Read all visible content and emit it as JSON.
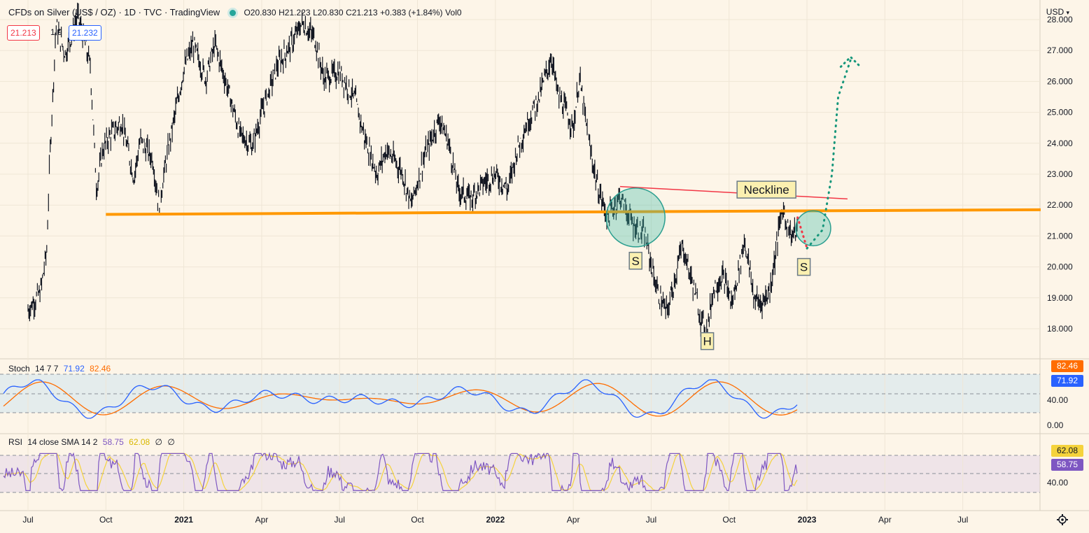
{
  "header": {
    "symbol": "CFDs on Silver (US$ / OZ) · 1D · TVC · TradingView",
    "open": "O20.830",
    "high": "H21.223",
    "low": "L20.830",
    "close": "C21.213",
    "change": "+0.383 (+1.84%)",
    "volume": "Vol0",
    "sell_price": "21.213",
    "spread": "1.9",
    "buy_price": "21.232",
    "currency": "USD"
  },
  "chart_data": {
    "type": "line",
    "title": "CFDs on Silver (US$ / OZ) · 1D · TVC · TradingView",
    "y_ticks": [
      "28.000",
      "27.000",
      "26.000",
      "25.000",
      "24.000",
      "23.000",
      "22.000",
      "21.000",
      "20.000",
      "19.000",
      "18.000"
    ],
    "x_ticks": [
      "Jul",
      "Oct",
      "2021",
      "Apr",
      "Jul",
      "Oct",
      "2022",
      "Apr",
      "Jul",
      "Oct",
      "2023",
      "Apr",
      "Jul"
    ],
    "ylim": [
      17.2,
      28.2
    ],
    "price_path": [
      [
        2020.5,
        18.6
      ],
      [
        2020.54,
        19.2
      ],
      [
        2020.56,
        20.5
      ],
      [
        2020.57,
        23.5
      ],
      [
        2020.59,
        27.8
      ],
      [
        2020.62,
        26.9
      ],
      [
        2020.66,
        28.1
      ],
      [
        2020.7,
        26.5
      ],
      [
        2020.72,
        22.5
      ],
      [
        2020.74,
        23.8
      ],
      [
        2020.76,
        24.2
      ],
      [
        2020.8,
        24.7
      ],
      [
        2020.84,
        22.9
      ],
      [
        2020.86,
        24.1
      ],
      [
        2020.9,
        23.5
      ],
      [
        2020.92,
        22.0
      ],
      [
        2020.95,
        23.8
      ],
      [
        2021.0,
        26.4
      ],
      [
        2021.03,
        27.2
      ],
      [
        2021.07,
        26.1
      ],
      [
        2021.1,
        27.2
      ],
      [
        2021.14,
        25.8
      ],
      [
        2021.18,
        24.3
      ],
      [
        2021.22,
        23.9
      ],
      [
        2021.25,
        25.0
      ],
      [
        2021.3,
        26.5
      ],
      [
        2021.35,
        27.3
      ],
      [
        2021.38,
        27.9
      ],
      [
        2021.42,
        27.4
      ],
      [
        2021.45,
        26.1
      ],
      [
        2021.5,
        26.3
      ],
      [
        2021.55,
        25.4
      ],
      [
        2021.58,
        24.2
      ],
      [
        2021.62,
        23.0
      ],
      [
        2021.65,
        23.8
      ],
      [
        2021.7,
        23.1
      ],
      [
        2021.73,
        22.0
      ],
      [
        2021.77,
        23.5
      ],
      [
        2021.82,
        24.8
      ],
      [
        2021.85,
        24.0
      ],
      [
        2021.88,
        22.5
      ],
      [
        2021.92,
        22.2
      ],
      [
        2021.96,
        22.7
      ],
      [
        2022.0,
        23.0
      ],
      [
        2022.04,
        22.5
      ],
      [
        2022.07,
        23.8
      ],
      [
        2022.1,
        24.6
      ],
      [
        2022.14,
        25.5
      ],
      [
        2022.18,
        26.8
      ],
      [
        2022.2,
        25.6
      ],
      [
        2022.25,
        24.5
      ],
      [
        2022.27,
        26.1
      ],
      [
        2022.3,
        24.0
      ],
      [
        2022.33,
        22.5
      ],
      [
        2022.36,
        21.6
      ],
      [
        2022.4,
        22.3
      ],
      [
        2022.44,
        21.4
      ],
      [
        2022.48,
        21.0
      ],
      [
        2022.52,
        19.2
      ],
      [
        2022.55,
        18.5
      ],
      [
        2022.58,
        19.8
      ],
      [
        2022.6,
        20.7
      ],
      [
        2022.64,
        19.2
      ],
      [
        2022.66,
        18.3
      ],
      [
        2022.68,
        18.0
      ],
      [
        2022.7,
        19.3
      ],
      [
        2022.73,
        19.7
      ],
      [
        2022.76,
        18.8
      ],
      [
        2022.8,
        20.9
      ],
      [
        2022.83,
        19.0
      ],
      [
        2022.85,
        18.8
      ],
      [
        2022.88,
        19.2
      ],
      [
        2022.9,
        20.5
      ],
      [
        2022.92,
        21.9
      ],
      [
        2022.95,
        21.0
      ],
      [
        2022.97,
        21.213
      ]
    ],
    "projection_path": [
      [
        2022.97,
        21.6
      ],
      [
        2023.0,
        20.6
      ],
      [
        2023.05,
        21.2
      ],
      [
        2023.08,
        23.0
      ],
      [
        2023.1,
        25.5
      ],
      [
        2023.14,
        26.7
      ]
    ],
    "neckline": [
      [
        2022.4,
        22.6
      ],
      [
        2023.13,
        22.2
      ]
    ],
    "support_line": [
      [
        2020.75,
        21.7
      ],
      [
        2023.75,
        21.85
      ]
    ],
    "annotations": [
      {
        "text": "Neckline",
        "x": 2022.87,
        "y": 22.5
      },
      {
        "text": "S",
        "x": 2022.45,
        "y": 20.2
      },
      {
        "text": "H",
        "x": 2022.68,
        "y": 17.6
      },
      {
        "text": "S",
        "x": 2022.99,
        "y": 20.0
      }
    ],
    "circles": [
      {
        "x": 2022.45,
        "y": 21.6
      },
      {
        "x": 2023.02,
        "y": 21.25
      }
    ]
  },
  "stoch": {
    "title": "Stoch",
    "params": "14 7 7",
    "k_value": "71.92",
    "d_value": "82.46",
    "k_color": "#2962ff",
    "d_color": "#ff6d00",
    "y_ticks": [
      "40.00",
      "0.00"
    ],
    "badge_d": "82.46",
    "badge_k": "71.92"
  },
  "rsi": {
    "title": "RSI",
    "params": "14 close SMA 14 2",
    "rsi_value": "58.75",
    "sma_value": "62.08",
    "rsi_color": "#7e57c2",
    "sma_color": "#f5d33c",
    "extra1": "∅",
    "extra2": "∅",
    "y_ticks": [
      "40.00"
    ],
    "badge_sma": "62.08",
    "badge_rsi": "58.75"
  }
}
